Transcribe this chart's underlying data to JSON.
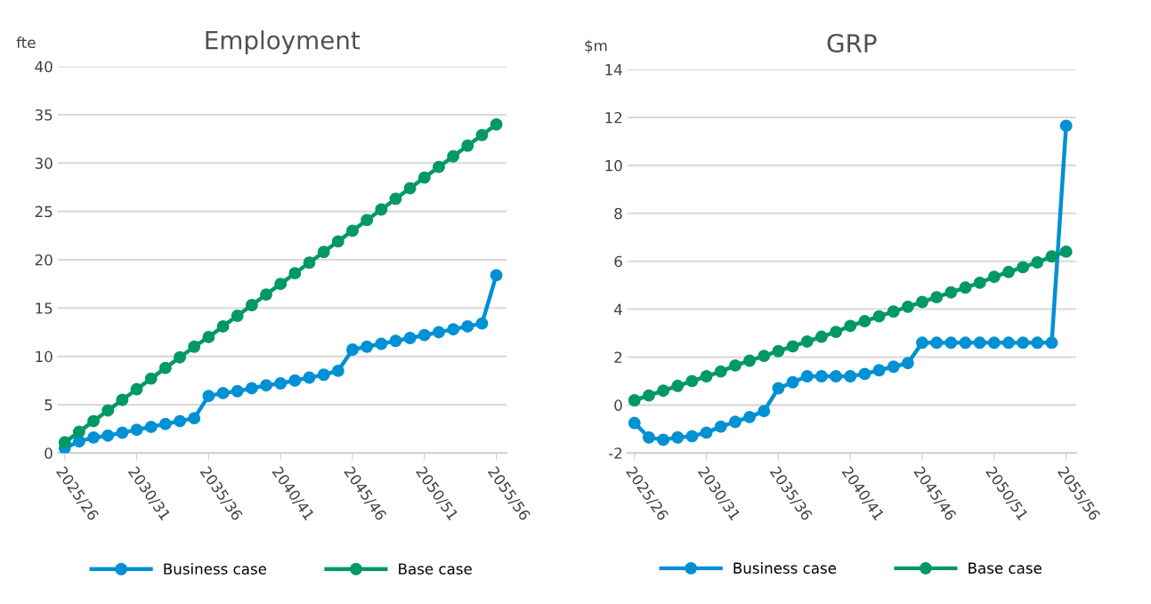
{
  "chart_data": [
    {
      "type": "line",
      "title": "Employment",
      "ylabel": "fte",
      "categories": [
        "2025/26",
        null,
        null,
        null,
        null,
        "2030/31",
        null,
        null,
        null,
        null,
        "2035/36",
        null,
        null,
        null,
        null,
        "2040/41",
        null,
        null,
        null,
        null,
        "2045/46",
        null,
        null,
        null,
        null,
        "2050/51",
        null,
        null,
        null,
        null,
        "2055/56"
      ],
      "series": [
        {
          "name": "Business case",
          "color": "#0090d4",
          "values": [
            0.5,
            1.2,
            1.6,
            1.8,
            2.1,
            2.4,
            2.7,
            3.0,
            3.3,
            3.6,
            5.9,
            6.2,
            6.4,
            6.7,
            7.0,
            7.2,
            7.5,
            7.8,
            8.1,
            8.5,
            10.7,
            11.0,
            11.3,
            11.6,
            11.9,
            12.2,
            12.5,
            12.8,
            13.1,
            13.4,
            18.4
          ]
        },
        {
          "name": "Base case",
          "color": "#009966",
          "values": [
            1.1,
            2.2,
            3.3,
            4.4,
            5.5,
            6.6,
            7.7,
            8.8,
            9.9,
            11.0,
            12.0,
            13.1,
            14.2,
            15.3,
            16.4,
            17.5,
            18.6,
            19.7,
            20.8,
            21.9,
            23.0,
            24.1,
            25.2,
            26.3,
            27.4,
            28.5,
            29.6,
            30.7,
            31.8,
            32.9,
            34.0
          ]
        }
      ],
      "ylim": [
        0,
        40
      ],
      "yticks": [
        0,
        5,
        10,
        15,
        20,
        25,
        30,
        35,
        40
      ],
      "grid": "y",
      "legend": "bottom",
      "marker": "circle",
      "line_style": "solid"
    },
    {
      "type": "line",
      "title": "GRP",
      "ylabel": "$m",
      "categories": [
        "2025/26",
        null,
        null,
        null,
        null,
        "2030/31",
        null,
        null,
        null,
        null,
        "2035/36",
        null,
        null,
        null,
        null,
        "2040/41",
        null,
        null,
        null,
        null,
        "2045/46",
        null,
        null,
        null,
        null,
        "2050/51",
        null,
        null,
        null,
        null,
        "2055/56"
      ],
      "series": [
        {
          "name": "Business case",
          "color": "#0090d4",
          "values": [
            -0.75,
            -1.35,
            -1.45,
            -1.35,
            -1.3,
            -1.15,
            -0.9,
            -0.7,
            -0.5,
            -0.25,
            0.7,
            0.95,
            1.2,
            1.2,
            1.2,
            1.2,
            1.3,
            1.45,
            1.6,
            1.75,
            2.6,
            2.6,
            2.6,
            2.6,
            2.6,
            2.6,
            2.6,
            2.6,
            2.6,
            2.6,
            11.65
          ]
        },
        {
          "name": "Base case",
          "color": "#009966",
          "values": [
            0.2,
            0.4,
            0.6,
            0.8,
            1.0,
            1.2,
            1.4,
            1.65,
            1.85,
            2.05,
            2.25,
            2.45,
            2.65,
            2.85,
            3.05,
            3.3,
            3.5,
            3.7,
            3.9,
            4.1,
            4.3,
            4.5,
            4.7,
            4.9,
            5.1,
            5.35,
            5.55,
            5.75,
            5.95,
            6.2,
            6.4
          ]
        }
      ],
      "ylim": [
        -2,
        14
      ],
      "yticks": [
        -2,
        0,
        2,
        4,
        6,
        8,
        10,
        12,
        14
      ],
      "grid": "y",
      "legend": "bottom",
      "marker": "circle",
      "line_style": "solid"
    }
  ]
}
